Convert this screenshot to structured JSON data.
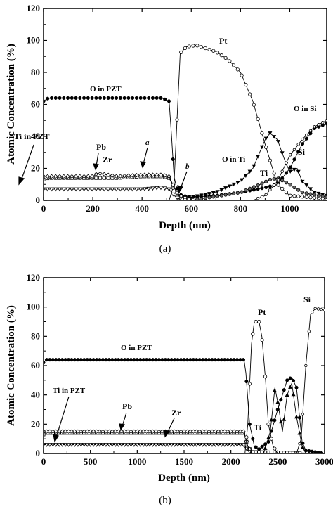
{
  "chart_data": [
    {
      "panel_label": "(a)",
      "type": "line",
      "xlabel": "Depth (nm)",
      "ylabel": "Atomic Concentration (%)",
      "xlim": [
        0,
        1150
      ],
      "ylim": [
        0,
        120
      ],
      "xticks": [
        "0",
        "200",
        "400",
        "600",
        "800",
        "1000"
      ],
      "yticks": [
        "0",
        "20",
        "40",
        "60",
        "80",
        "100",
        "120"
      ],
      "series": [
        {
          "key": "O_PZT",
          "marker": "filled-circle",
          "points": [
            [
              0,
              62
            ],
            [
              20,
              64
            ],
            [
              100,
              64
            ],
            [
              200,
              64
            ],
            [
              300,
              64
            ],
            [
              400,
              64
            ],
            [
              480,
              64
            ],
            [
              510,
              62
            ],
            [
              520,
              40
            ],
            [
              530,
              15
            ],
            [
              540,
              8
            ],
            [
              560,
              3
            ],
            [
              600,
              2
            ],
            [
              700,
              3
            ],
            [
              800,
              5
            ],
            [
              900,
              8
            ],
            [
              950,
              10
            ],
            [
              1000,
              20
            ],
            [
              1050,
              35
            ],
            [
              1100,
              45
            ],
            [
              1150,
              48
            ]
          ]
        },
        {
          "key": "O_Ti",
          "marker": "filled-triangle-down",
          "points": [
            [
              0,
              0
            ],
            [
              500,
              0
            ],
            [
              540,
              0
            ],
            [
              560,
              2
            ],
            [
              600,
              2
            ],
            [
              700,
              5
            ],
            [
              800,
              12
            ],
            [
              850,
              20
            ],
            [
              900,
              38
            ],
            [
              920,
              42
            ],
            [
              950,
              38
            ],
            [
              980,
              25
            ],
            [
              1000,
              18
            ],
            [
              1030,
              20
            ],
            [
              1050,
              12
            ],
            [
              1100,
              5
            ],
            [
              1150,
              3
            ]
          ]
        },
        {
          "key": "Pt",
          "marker": "open-circle",
          "points": [
            [
              0,
              0
            ],
            [
              510,
              0
            ],
            [
              530,
              10
            ],
            [
              545,
              60
            ],
            [
              555,
              92
            ],
            [
              580,
              96
            ],
            [
              620,
              97
            ],
            [
              700,
              93
            ],
            [
              750,
              88
            ],
            [
              800,
              80
            ],
            [
              850,
              62
            ],
            [
              900,
              35
            ],
            [
              950,
              10
            ],
            [
              1000,
              3
            ],
            [
              1150,
              1
            ]
          ]
        },
        {
          "key": "Ti_PZT",
          "marker": "open-square",
          "points": [
            [
              0,
              13
            ],
            [
              20,
              14
            ],
            [
              100,
              14
            ],
            [
              200,
              14
            ],
            [
              300,
              14
            ],
            [
              400,
              15
            ],
            [
              480,
              15
            ],
            [
              510,
              14
            ],
            [
              530,
              8
            ],
            [
              550,
              3
            ],
            [
              600,
              0
            ],
            [
              1150,
              0
            ]
          ]
        },
        {
          "key": "Pb",
          "marker": "diamond",
          "points": [
            [
              0,
              15
            ],
            [
              100,
              15
            ],
            [
              200,
              15
            ],
            [
              220,
              17
            ],
            [
              300,
              15
            ],
            [
              400,
              16
            ],
            [
              480,
              16
            ],
            [
              510,
              15
            ],
            [
              540,
              5
            ],
            [
              580,
              0
            ],
            [
              1150,
              0
            ]
          ]
        },
        {
          "key": "Zr",
          "marker": "open-triangle-down",
          "points": [
            [
              0,
              7
            ],
            [
              100,
              7
            ],
            [
              200,
              7
            ],
            [
              300,
              7
            ],
            [
              400,
              7
            ],
            [
              480,
              8
            ],
            [
              510,
              7
            ],
            [
              530,
              3
            ],
            [
              560,
              0
            ],
            [
              1150,
              0
            ]
          ]
        },
        {
          "key": "Ti",
          "marker": "half-filled-circle",
          "points": [
            [
              0,
              0
            ],
            [
              600,
              0
            ],
            [
              800,
              5
            ],
            [
              880,
              10
            ],
            [
              920,
              13
            ],
            [
              950,
              14
            ],
            [
              1000,
              10
            ],
            [
              1050,
              5
            ],
            [
              1150,
              2
            ]
          ]
        },
        {
          "key": "Si",
          "marker": "open-circle-small",
          "points": [
            [
              0,
              0
            ],
            [
              850,
              0
            ],
            [
              900,
              3
            ],
            [
              950,
              12
            ],
            [
              1000,
              28
            ],
            [
              1050,
              38
            ],
            [
              1100,
              46
            ],
            [
              1150,
              50
            ]
          ]
        }
      ],
      "annotations": [
        "O in PZT",
        "Pt",
        "Ti in PZT",
        "Pb",
        "Zr",
        "a",
        "b",
        "O in Ti",
        "Ti",
        "O in Si",
        "Si"
      ]
    },
    {
      "panel_label": "(b)",
      "type": "line",
      "xlabel": "Depth (nm)",
      "ylabel": "Atomic Concentration (%)",
      "xlim": [
        0,
        3000
      ],
      "ylim": [
        0,
        120
      ],
      "xticks": [
        "0",
        "500",
        "1000",
        "1500",
        "2000",
        "2500",
        "3000"
      ],
      "yticks": [
        "0",
        "20",
        "40",
        "60",
        "80",
        "100",
        "120"
      ],
      "series": [
        {
          "key": "O_PZT",
          "marker": "filled-circle",
          "points": [
            [
              0,
              62
            ],
            [
              30,
              64
            ],
            [
              500,
              64
            ],
            [
              1000,
              64
            ],
            [
              1500,
              64
            ],
            [
              2000,
              64
            ],
            [
              2140,
              64
            ],
            [
              2160,
              55
            ],
            [
              2200,
              20
            ],
            [
              2250,
              5
            ],
            [
              2300,
              3
            ],
            [
              2400,
              8
            ],
            [
              2500,
              30
            ],
            [
              2600,
              50
            ],
            [
              2650,
              52
            ],
            [
              2700,
              45
            ],
            [
              2760,
              8
            ],
            [
              2800,
              2
            ],
            [
              3000,
              0
            ]
          ]
        },
        {
          "key": "Ti_PZT",
          "marker": "open-square",
          "points": [
            [
              0,
              13
            ],
            [
              30,
              14
            ],
            [
              500,
              14
            ],
            [
              1000,
              14
            ],
            [
              1500,
              14
            ],
            [
              2000,
              14
            ],
            [
              2140,
              14
            ],
            [
              2180,
              5
            ],
            [
              2220,
              1
            ],
            [
              3000,
              0
            ]
          ]
        },
        {
          "key": "Pb",
          "marker": "diamond",
          "points": [
            [
              0,
              15
            ],
            [
              500,
              15
            ],
            [
              1000,
              15
            ],
            [
              1500,
              15
            ],
            [
              2000,
              15
            ],
            [
              2140,
              15
            ],
            [
              2180,
              5
            ],
            [
              2230,
              0
            ],
            [
              3000,
              0
            ]
          ]
        },
        {
          "key": "Zr",
          "marker": "open-triangle-down",
          "points": [
            [
              0,
              6
            ],
            [
              500,
              6
            ],
            [
              1000,
              6
            ],
            [
              1500,
              6
            ],
            [
              2000,
              6
            ],
            [
              2140,
              6
            ],
            [
              2180,
              2
            ],
            [
              2230,
              0
            ],
            [
              3000,
              0
            ]
          ]
        },
        {
          "key": "Pt",
          "marker": "open-circle",
          "points": [
            [
              0,
              0
            ],
            [
              2150,
              0
            ],
            [
              2180,
              20
            ],
            [
              2220,
              75
            ],
            [
              2250,
              90
            ],
            [
              2300,
              90
            ],
            [
              2330,
              80
            ],
            [
              2370,
              50
            ],
            [
              2400,
              20
            ],
            [
              2450,
              5
            ],
            [
              2500,
              0
            ],
            [
              3000,
              0
            ]
          ]
        },
        {
          "key": "Ti",
          "marker": "filled-triangle",
          "points": [
            [
              0,
              0
            ],
            [
              2350,
              0
            ],
            [
              2420,
              15
            ],
            [
              2470,
              45
            ],
            [
              2500,
              35
            ],
            [
              2550,
              15
            ],
            [
              2600,
              40
            ],
            [
              2650,
              48
            ],
            [
              2700,
              25
            ],
            [
              2760,
              5
            ],
            [
              2800,
              0
            ],
            [
              3000,
              0
            ]
          ]
        },
        {
          "key": "Si",
          "marker": "open-circle-small",
          "points": [
            [
              0,
              0
            ],
            [
              2700,
              0
            ],
            [
              2750,
              10
            ],
            [
              2800,
              60
            ],
            [
              2850,
              95
            ],
            [
              2900,
              99
            ],
            [
              3000,
              98
            ]
          ]
        }
      ],
      "annotations": [
        "O in PZT",
        "Pt",
        "Si",
        "Ti in PZT",
        "Pb",
        "Zr",
        "Ti"
      ]
    }
  ]
}
